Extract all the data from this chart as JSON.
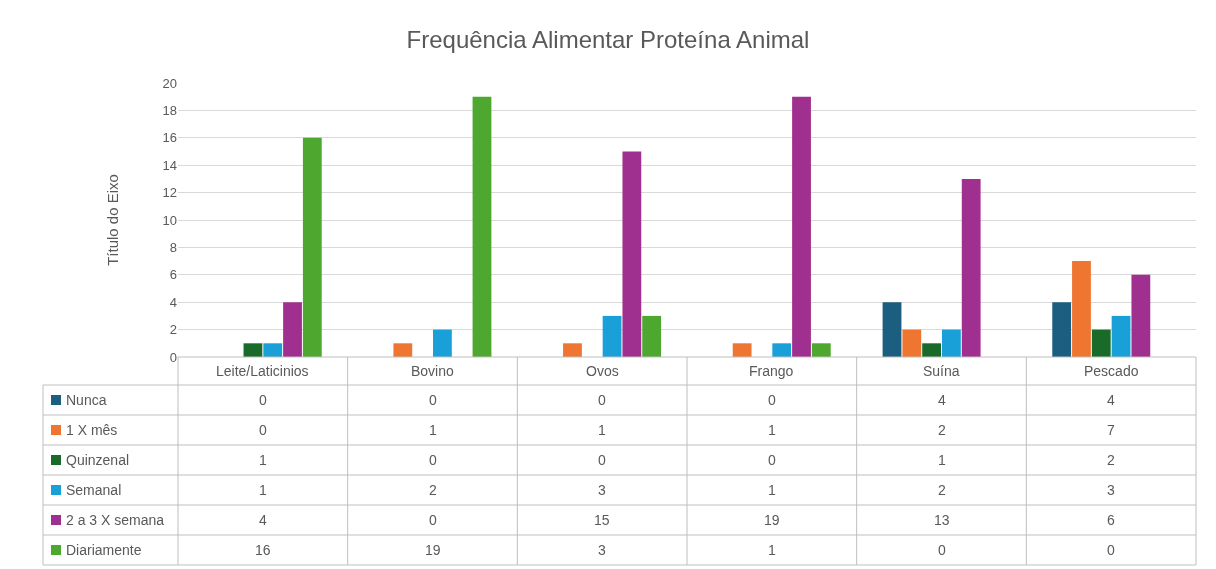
{
  "chart_data": {
    "type": "bar",
    "title": "Frequência Alimentar Proteína Animal",
    "ylabel": "Título do Eixo",
    "categories": [
      "Leite/Laticinios",
      "Bovino",
      "Ovos",
      "Frango",
      "Suína",
      "Pescado"
    ],
    "series": [
      {
        "name": "Nunca",
        "color": "#1b5e80",
        "values": [
          0,
          0,
          0,
          0,
          4,
          4
        ]
      },
      {
        "name": "1 X mês",
        "color": "#ee7631",
        "values": [
          0,
          1,
          1,
          1,
          2,
          7
        ]
      },
      {
        "name": "Quinzenal",
        "color": "#1a6b2a",
        "values": [
          1,
          0,
          0,
          0,
          1,
          2
        ]
      },
      {
        "name": "Semanal",
        "color": "#1aa0d8",
        "values": [
          1,
          2,
          3,
          1,
          2,
          3
        ]
      },
      {
        "name": "2 a 3 X semana",
        "color": "#a0308f",
        "values": [
          4,
          0,
          15,
          19,
          13,
          6
        ]
      },
      {
        "name": "Diariamente",
        "color": "#4ea72e",
        "values": [
          16,
          19,
          3,
          1,
          0,
          0
        ]
      }
    ],
    "ylim": [
      0,
      20
    ],
    "yticks": [
      0,
      2,
      4,
      6,
      8,
      10,
      12,
      14,
      16,
      18,
      20
    ],
    "grid": "y",
    "legend": "bottom",
    "data_labels": true
  }
}
